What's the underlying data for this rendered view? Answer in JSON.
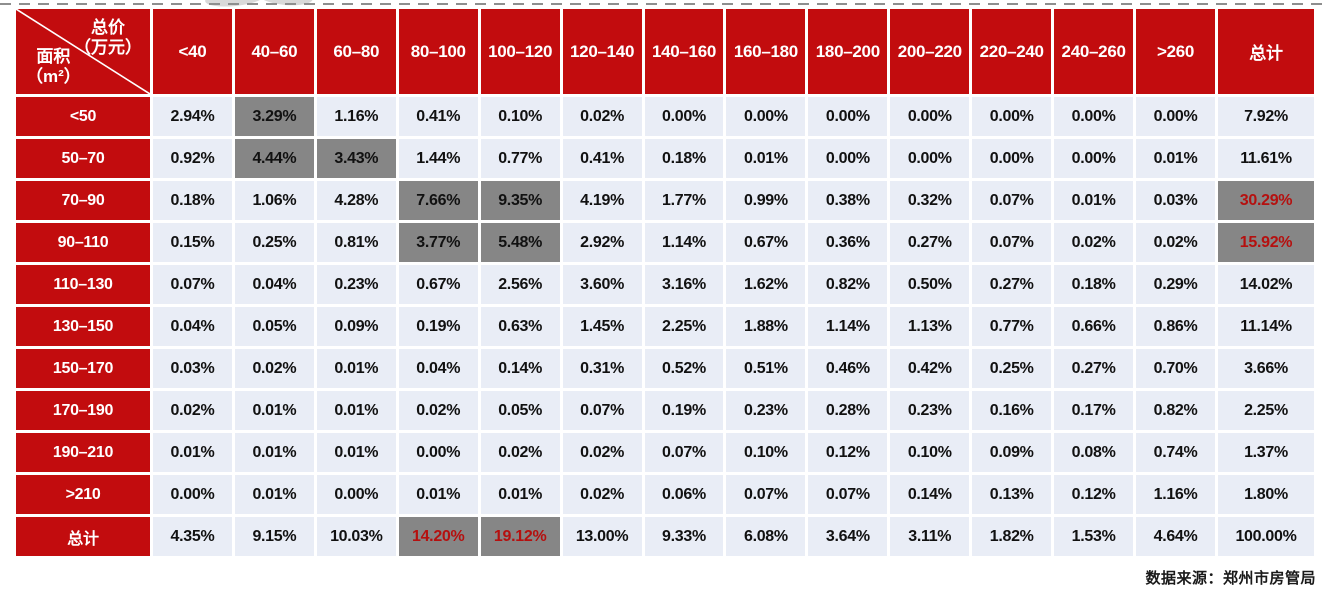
{
  "footer": {
    "source": "数据来源：郑州市房管局"
  },
  "colors": {
    "red": "#c20c0e",
    "gray": "#868686",
    "cellbg": "#e9edf6",
    "redtext": "#b5100f"
  },
  "chart_data": {
    "type": "heatmap",
    "title": "",
    "corner": {
      "price_label": "总价",
      "price_unit": "（万元）",
      "area_label": "面积",
      "area_unit": "（m²）"
    },
    "col_headers": [
      "<40",
      "40–60",
      "60–80",
      "80–100",
      "100–120",
      "120–140",
      "140–160",
      "160–180",
      "180–200",
      "200–220",
      "220–240",
      "240–260",
      ">260",
      "总计"
    ],
    "row_headers": [
      "<50",
      "50–70",
      "70–90",
      "90–110",
      "110–130",
      "130–150",
      "150–170",
      "170–190",
      "190–210",
      ">210",
      "总计"
    ],
    "rows": [
      [
        "2.94%",
        "3.29%",
        "1.16%",
        "0.41%",
        "0.10%",
        "0.02%",
        "0.00%",
        "0.00%",
        "0.00%",
        "0.00%",
        "0.00%",
        "0.00%",
        "0.00%",
        "7.92%"
      ],
      [
        "0.92%",
        "4.44%",
        "3.43%",
        "1.44%",
        "0.77%",
        "0.41%",
        "0.18%",
        "0.01%",
        "0.00%",
        "0.00%",
        "0.00%",
        "0.00%",
        "0.01%",
        "11.61%"
      ],
      [
        "0.18%",
        "1.06%",
        "4.28%",
        "7.66%",
        "9.35%",
        "4.19%",
        "1.77%",
        "0.99%",
        "0.38%",
        "0.32%",
        "0.07%",
        "0.01%",
        "0.03%",
        "30.29%"
      ],
      [
        "0.15%",
        "0.25%",
        "0.81%",
        "3.77%",
        "5.48%",
        "2.92%",
        "1.14%",
        "0.67%",
        "0.36%",
        "0.27%",
        "0.07%",
        "0.02%",
        "0.02%",
        "15.92%"
      ],
      [
        "0.07%",
        "0.04%",
        "0.23%",
        "0.67%",
        "2.56%",
        "3.60%",
        "3.16%",
        "1.62%",
        "0.82%",
        "0.50%",
        "0.27%",
        "0.18%",
        "0.29%",
        "14.02%"
      ],
      [
        "0.04%",
        "0.05%",
        "0.09%",
        "0.19%",
        "0.63%",
        "1.45%",
        "2.25%",
        "1.88%",
        "1.14%",
        "1.13%",
        "0.77%",
        "0.66%",
        "0.86%",
        "11.14%"
      ],
      [
        "0.03%",
        "0.02%",
        "0.01%",
        "0.04%",
        "0.14%",
        "0.31%",
        "0.52%",
        "0.51%",
        "0.46%",
        "0.42%",
        "0.25%",
        "0.27%",
        "0.70%",
        "3.66%"
      ],
      [
        "0.02%",
        "0.01%",
        "0.01%",
        "0.02%",
        "0.05%",
        "0.07%",
        "0.19%",
        "0.23%",
        "0.28%",
        "0.23%",
        "0.16%",
        "0.17%",
        "0.82%",
        "2.25%"
      ],
      [
        "0.01%",
        "0.01%",
        "0.01%",
        "0.00%",
        "0.02%",
        "0.02%",
        "0.07%",
        "0.10%",
        "0.12%",
        "0.10%",
        "0.09%",
        "0.08%",
        "0.74%",
        "1.37%"
      ],
      [
        "0.00%",
        "0.01%",
        "0.00%",
        "0.01%",
        "0.01%",
        "0.02%",
        "0.06%",
        "0.07%",
        "0.07%",
        "0.14%",
        "0.13%",
        "0.12%",
        "1.16%",
        "1.80%"
      ],
      [
        "4.35%",
        "9.15%",
        "10.03%",
        "14.20%",
        "19.12%",
        "13.00%",
        "9.33%",
        "6.08%",
        "3.64%",
        "3.11%",
        "1.82%",
        "1.53%",
        "4.64%",
        "100.00%"
      ]
    ],
    "gray_highlight_cells": [
      [
        0,
        1
      ],
      [
        1,
        1
      ],
      [
        1,
        2
      ],
      [
        2,
        3
      ],
      [
        2,
        4
      ],
      [
        2,
        13
      ],
      [
        3,
        3
      ],
      [
        3,
        4
      ],
      [
        3,
        13
      ],
      [
        10,
        3
      ],
      [
        10,
        4
      ]
    ],
    "red_text_cells": [
      [
        2,
        13
      ],
      [
        3,
        13
      ],
      [
        10,
        3
      ],
      [
        10,
        4
      ]
    ],
    "legend_note": "gray cells = concentration highlights; red numbers = key totals"
  }
}
